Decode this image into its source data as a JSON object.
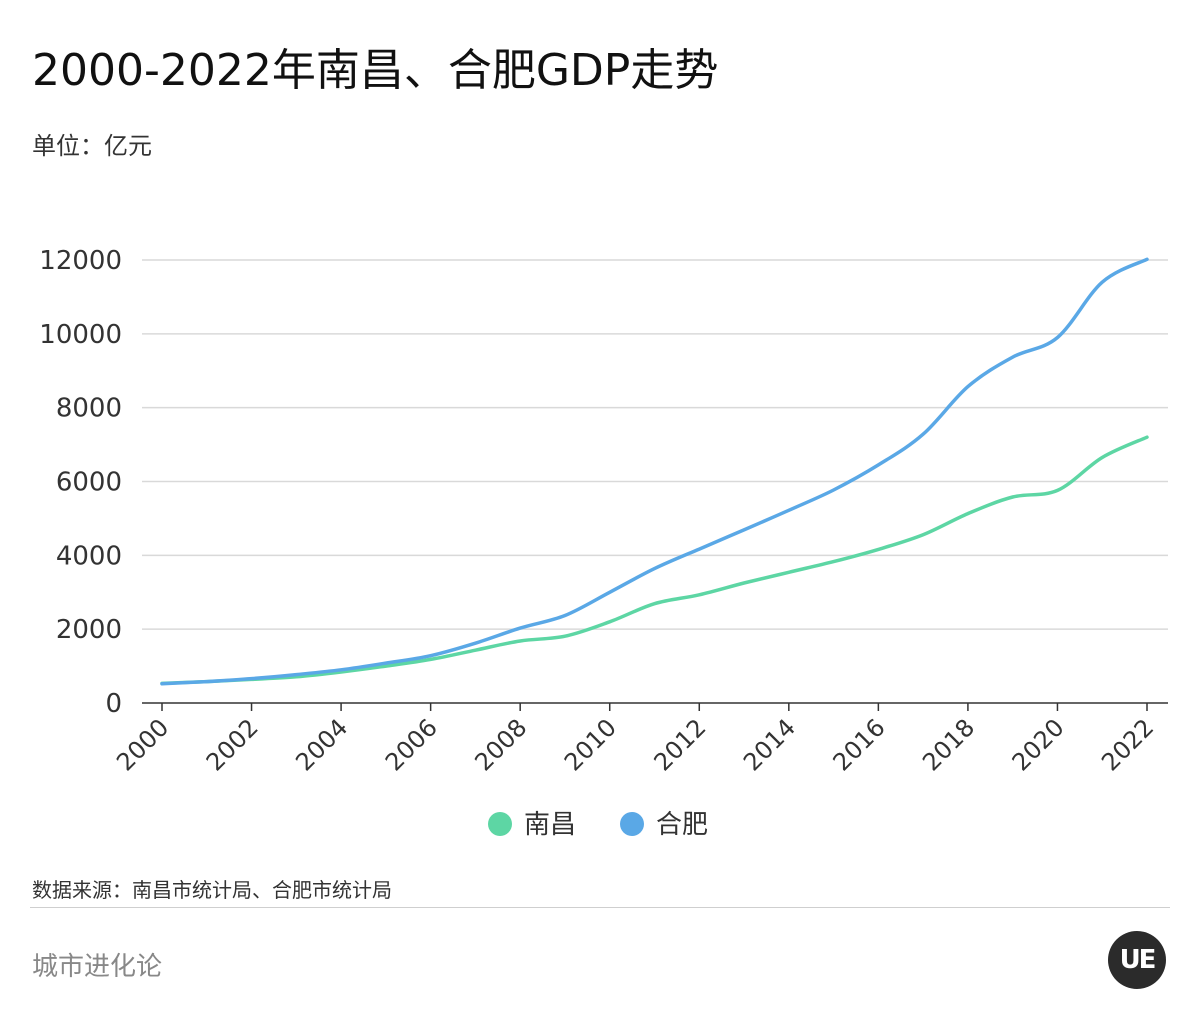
{
  "title": "2000-2022年南昌、合肥GDP走势",
  "unit_label": "单位：亿元",
  "source": "数据来源：南昌市统计局、合肥市统计局",
  "brand": "城市进化论",
  "logo_text": "UE",
  "colors": {
    "nanchang": "#5dd6a4",
    "hefei": "#5aa8e6",
    "grid": "#d9d9d9",
    "axis": "#333333"
  },
  "chart_data": {
    "type": "line",
    "title": "2000-2022年南昌、合肥GDP走势",
    "ylabel": "单位：亿元",
    "xlabel": "",
    "ylim": [
      0,
      12000
    ],
    "yticks": [
      0,
      2000,
      4000,
      6000,
      8000,
      10000,
      12000
    ],
    "xtick_labels": [
      "2000",
      "2002",
      "2004",
      "2006",
      "2008",
      "2010",
      "2012",
      "2014",
      "2016",
      "2018",
      "2020",
      "2022"
    ],
    "x": [
      2000,
      2001,
      2002,
      2003,
      2004,
      2005,
      2006,
      2007,
      2008,
      2009,
      2010,
      2011,
      2012,
      2013,
      2014,
      2015,
      2016,
      2017,
      2018,
      2019,
      2020,
      2021,
      2022
    ],
    "legend_position": "bottom-center",
    "series": [
      {
        "name": "南昌",
        "color": "#5dd6a4",
        "values": [
          530,
          580,
          640,
          710,
          840,
          1000,
          1180,
          1430,
          1680,
          1810,
          2200,
          2690,
          2930,
          3250,
          3540,
          3830,
          4160,
          4560,
          5130,
          5580,
          5760,
          6650,
          7200
        ]
      },
      {
        "name": "合肥",
        "color": "#5aa8e6",
        "values": [
          520,
          580,
          660,
          770,
          900,
          1080,
          1280,
          1620,
          2030,
          2370,
          3000,
          3640,
          4170,
          4690,
          5220,
          5770,
          6450,
          7280,
          8570,
          9370,
          9900,
          11400,
          12020
        ]
      }
    ]
  }
}
